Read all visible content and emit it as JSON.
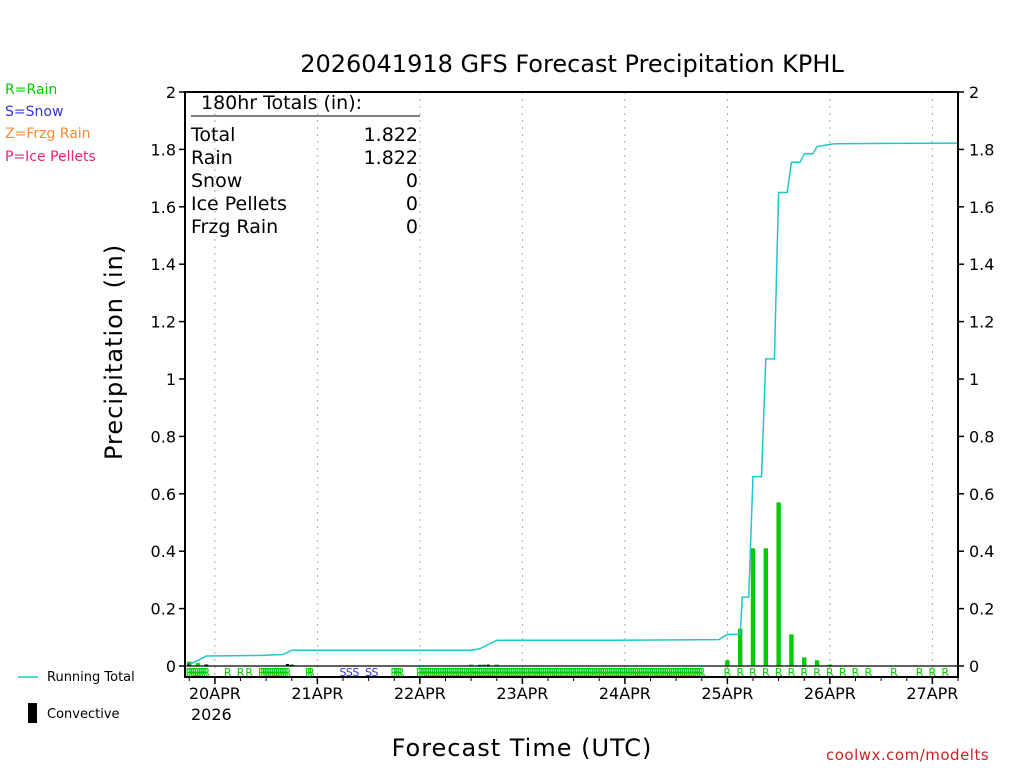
{
  "chart_data": {
    "type": "bar+line",
    "title": "2026041918 GFS Forecast Precipitation KPHL",
    "xlabel": "Forecast Time (UTC)",
    "ylabel": "Precipitation (in)",
    "ylim": [
      0,
      2
    ],
    "yticks": [
      "0",
      "0.2",
      "0.4",
      "0.6",
      "0.8",
      "1",
      "1.2",
      "1.4",
      "1.6",
      "1.8",
      "2"
    ],
    "x_unit": "forecast hour",
    "xlim": [
      -1,
      180
    ],
    "xticks": [
      {
        "hour": 6,
        "label": "20APR"
      },
      {
        "hour": 30,
        "label": "21APR"
      },
      {
        "hour": 54,
        "label": "22APR"
      },
      {
        "hour": 78,
        "label": "23APR"
      },
      {
        "hour": 102,
        "label": "24APR"
      },
      {
        "hour": 126,
        "label": "25APR"
      },
      {
        "hour": 150,
        "label": "26APR"
      },
      {
        "hour": 174,
        "label": "27APR"
      }
    ],
    "year_label": "2026",
    "running_total": {
      "name": "Running Total",
      "color": "#1ec8c8",
      "points": [
        [
          0,
          0.005
        ],
        [
          2,
          0.02
        ],
        [
          4,
          0.035
        ],
        [
          17,
          0.037
        ],
        [
          22,
          0.04
        ],
        [
          24,
          0.055
        ],
        [
          66,
          0.055
        ],
        [
          68,
          0.06
        ],
        [
          70,
          0.075
        ],
        [
          72,
          0.09
        ],
        [
          100,
          0.09
        ],
        [
          124,
          0.092
        ],
        [
          126,
          0.11
        ],
        [
          129,
          0.11
        ],
        [
          129.5,
          0.24
        ],
        [
          131,
          0.24
        ],
        [
          132,
          0.66
        ],
        [
          134,
          0.66
        ],
        [
          135,
          1.07
        ],
        [
          137,
          1.07
        ],
        [
          138,
          1.65
        ],
        [
          140,
          1.65
        ],
        [
          141,
          1.755
        ],
        [
          143,
          1.755
        ],
        [
          144,
          1.785
        ],
        [
          146,
          1.785
        ],
        [
          147,
          1.81
        ],
        [
          149,
          1.815
        ],
        [
          151,
          1.82
        ],
        [
          180,
          1.822
        ]
      ]
    },
    "precip_bars": {
      "name": "Rain",
      "color": "#00cc00",
      "hours": [
        0,
        2,
        4,
        24,
        66,
        69,
        72,
        126,
        129,
        132,
        135,
        138,
        141,
        144,
        147,
        150
      ],
      "values": [
        0.015,
        0.01,
        0.005,
        0.005,
        0.005,
        0.005,
        0.005,
        0.02,
        0.13,
        0.41,
        0.41,
        0.57,
        0.11,
        0.03,
        0.02,
        0.005
      ]
    },
    "convective": {
      "name": "Convective",
      "color": "#000000",
      "hours": [
        0,
        4,
        23,
        24,
        68,
        70
      ],
      "values": [
        0.008,
        0.005,
        0.007,
        0.004,
        0.004,
        0.005
      ]
    },
    "ptype_strip": [
      {
        "code": "R",
        "hours": [
          0,
          0.5,
          1,
          1.5,
          2,
          2.5,
          3,
          3.5,
          4,
          9,
          12,
          14,
          17,
          17.5,
          18,
          18.5,
          19,
          19.5,
          20,
          20.5,
          21,
          21.5,
          22,
          22.5,
          23,
          28,
          28.5,
          48,
          48.5,
          49,
          49.5,
          54,
          54.5,
          55,
          55.5,
          56,
          56.5,
          57,
          57.5,
          58,
          58.5,
          59,
          59.5,
          60,
          60.5,
          61,
          61.5,
          62,
          62.5,
          63,
          63.5,
          64,
          64.5,
          65,
          65.5,
          66,
          66.5,
          67,
          67.5,
          68,
          68.5,
          69,
          69.5,
          70,
          70.5,
          71,
          71.5,
          72,
          72.5,
          73,
          73.5,
          74,
          74.5,
          75,
          75.5,
          76,
          76.5,
          77,
          77.5,
          78,
          78.5,
          79,
          79.5,
          80,
          80.5,
          81,
          81.5,
          82,
          82.5,
          83,
          83.5,
          84,
          84.5,
          85,
          85.5,
          86,
          86.5,
          87,
          87.5,
          88,
          88.5,
          89,
          89.5,
          90,
          90.5,
          91,
          91.5,
          92,
          92.5,
          93,
          93.5,
          94,
          94.5,
          95,
          95.5,
          96,
          96.5,
          97,
          97.5,
          98,
          98.5,
          99,
          99.5,
          100,
          100.5,
          101,
          101.5,
          102,
          102.5,
          103,
          103.5,
          104,
          104.5,
          105,
          105.5,
          106,
          106.5,
          107,
          107.5,
          108,
          108.5,
          109,
          109.5,
          110,
          110.5,
          111,
          111.5,
          112,
          112.5,
          113,
          113.5,
          114,
          114.5,
          115,
          115.5,
          116,
          116.5,
          117,
          117.5,
          118,
          118.5,
          119,
          119.5,
          120,
          126,
          129,
          132,
          135,
          138,
          141,
          144,
          147,
          150,
          153,
          156,
          159,
          165,
          171,
          174,
          177
        ]
      },
      {
        "code": "S",
        "hours": [
          36,
          37.5,
          39,
          42,
          43.5
        ]
      }
    ],
    "totals_box": {
      "header": "180hr Totals (in):",
      "rows": [
        {
          "label": "Total",
          "value": "1.822"
        },
        {
          "label": "Rain",
          "value": "1.822"
        },
        {
          "label": "Snow",
          "value": "0"
        },
        {
          "label": "Ice Pellets",
          "value": "0"
        },
        {
          "label": "Frzg Rain",
          "value": "0"
        }
      ]
    },
    "ptype_legend": [
      {
        "text": "R=Rain",
        "color": "#00cc00"
      },
      {
        "text": "S=Snow",
        "color": "#3333dd"
      },
      {
        "text": "Z=Frzg Rain",
        "color": "#ff8833"
      },
      {
        "text": "P=Ice Pellets",
        "color": "#ee2277"
      }
    ],
    "series_legend": [
      {
        "text": "Running Total",
        "color": "#1ec8c8"
      },
      {
        "text": "Convective",
        "color": "#000000"
      }
    ]
  },
  "credit": "coolwx.com/modelts"
}
